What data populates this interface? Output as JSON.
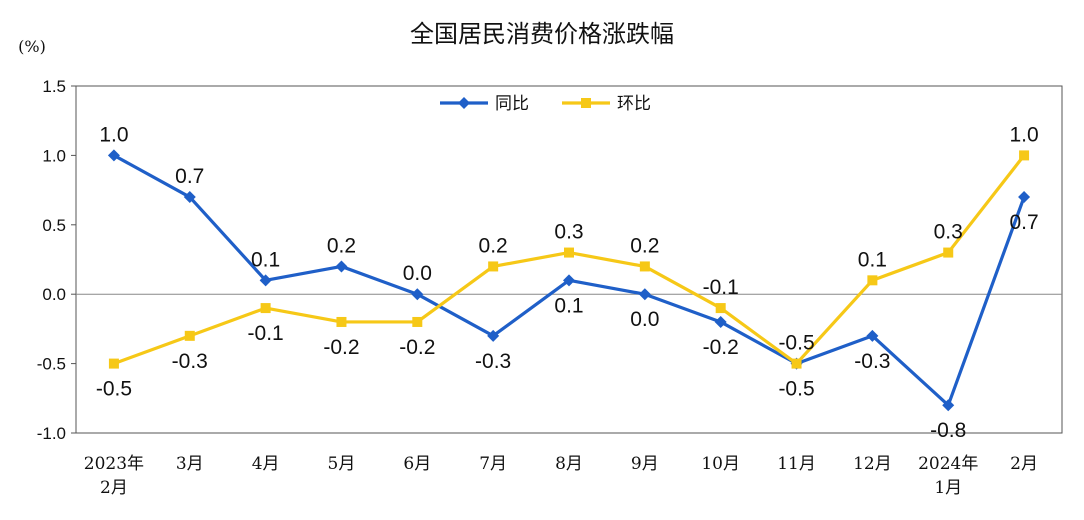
{
  "chart_data": {
    "type": "line",
    "title": "全国居民消费价格涨跌幅",
    "unit": "(%)",
    "ylim": [
      -1.0,
      1.5
    ],
    "yticks": [
      "1.5",
      "1.0",
      "0.5",
      "0.0",
      "-0.5",
      "-1.0"
    ],
    "categories": [
      [
        "2023年",
        "2月"
      ],
      [
        "3月"
      ],
      [
        "4月"
      ],
      [
        "5月"
      ],
      [
        "6月"
      ],
      [
        "7月"
      ],
      [
        "8月"
      ],
      [
        "9月"
      ],
      [
        "10月"
      ],
      [
        "11月"
      ],
      [
        "12月"
      ],
      [
        "2024年",
        "1月"
      ],
      [
        "2月"
      ]
    ],
    "legend_position": "top-center",
    "series": [
      {
        "name": "同比",
        "color": "#1f5fc8",
        "marker": "diamond",
        "values": [
          1.0,
          0.7,
          0.1,
          0.2,
          0.0,
          -0.3,
          0.1,
          0.0,
          -0.2,
          -0.5,
          -0.3,
          -0.8,
          0.7
        ],
        "labels": [
          "1.0",
          "0.7",
          "0.1",
          "0.2",
          "0.0",
          "-0.3",
          "0.1",
          "0.0",
          "-0.2",
          "-0.5",
          "-0.3",
          "-0.8",
          "0.7"
        ]
      },
      {
        "name": "环比",
        "color": "#f6c817",
        "marker": "square",
        "values": [
          -0.5,
          -0.3,
          -0.1,
          -0.2,
          -0.2,
          0.2,
          0.3,
          0.2,
          -0.1,
          -0.5,
          0.1,
          0.3,
          1.0
        ],
        "labels": [
          "-0.5",
          "-0.3",
          "-0.1",
          "-0.2",
          "-0.2",
          "0.2",
          "0.3",
          "0.2",
          "-0.1",
          "-0.5",
          "0.1",
          "0.3",
          "1.0"
        ]
      }
    ]
  }
}
